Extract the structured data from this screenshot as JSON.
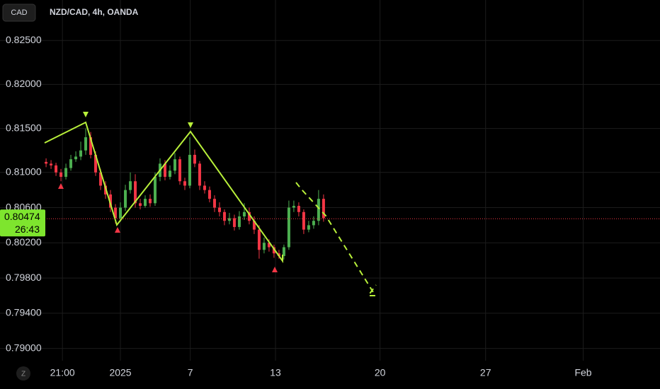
{
  "chart_data": {
    "type": "candlestick",
    "symbol_badge": "CAD",
    "title": "NZD/CAD, 4h, OANDA",
    "up_color": "#4caf50",
    "down_color": "#f23645",
    "opens": [
      0.8112,
      0.811,
      0.8108,
      0.81,
      0.8095,
      0.8105,
      0.8115,
      0.8118,
      0.8125,
      0.814,
      0.812,
      0.81,
      0.8085,
      0.8075,
      0.806,
      0.8048,
      0.806,
      0.808,
      0.809,
      0.8065,
      0.8062,
      0.807,
      0.8065,
      0.8095,
      0.811,
      0.8095,
      0.8102,
      0.8115,
      0.809,
      0.8085,
      0.812,
      0.811,
      0.8085,
      0.808,
      0.807,
      0.806,
      0.8055,
      0.8045,
      0.8048,
      0.8038,
      0.805,
      0.8055,
      0.8045,
      0.8035,
      0.8012,
      0.802,
      0.8015,
      0.8008,
      0.8005,
      0.8015,
      0.806,
      0.8062,
      0.8055,
      0.8035,
      0.804,
      0.8045,
      0.807
    ],
    "highs": [
      0.8116,
      0.8114,
      0.8111,
      0.8104,
      0.811,
      0.812,
      0.8124,
      0.8135,
      0.815,
      0.8146,
      0.8124,
      0.8104,
      0.809,
      0.808,
      0.8064,
      0.8066,
      0.8086,
      0.81,
      0.8098,
      0.807,
      0.8074,
      0.8075,
      0.81,
      0.8116,
      0.8114,
      0.8108,
      0.8122,
      0.8118,
      0.8094,
      0.814,
      0.8126,
      0.8113,
      0.809,
      0.8084,
      0.8074,
      0.8066,
      0.8058,
      0.8054,
      0.8052,
      0.8056,
      0.8065,
      0.806,
      0.805,
      0.804,
      0.8026,
      0.8024,
      0.8018,
      0.8012,
      0.8018,
      0.8068,
      0.8068,
      0.8066,
      0.8058,
      0.8045,
      0.805,
      0.808,
      0.8075
    ],
    "lows": [
      0.8106,
      0.8104,
      0.8096,
      0.809,
      0.8092,
      0.8102,
      0.8112,
      0.8114,
      0.812,
      0.8116,
      0.8096,
      0.808,
      0.807,
      0.8055,
      0.8042,
      0.8044,
      0.8056,
      0.8076,
      0.806,
      0.8058,
      0.806,
      0.8061,
      0.8062,
      0.809,
      0.8091,
      0.8092,
      0.8098,
      0.8086,
      0.808,
      0.8082,
      0.8106,
      0.808,
      0.8076,
      0.8066,
      0.8055,
      0.805,
      0.804,
      0.8041,
      0.8034,
      0.8035,
      0.8046,
      0.8041,
      0.803,
      0.8002,
      0.8008,
      0.801,
      0.8003,
      0.8002,
      0.8001,
      0.8012,
      0.8055,
      0.805,
      0.803,
      0.8032,
      0.8036,
      0.804,
      0.8044
    ],
    "closes": [
      0.811,
      0.8108,
      0.81,
      0.8095,
      0.8105,
      0.8115,
      0.8118,
      0.8125,
      0.814,
      0.812,
      0.81,
      0.8085,
      0.8075,
      0.806,
      0.8048,
      0.806,
      0.808,
      0.809,
      0.8065,
      0.8062,
      0.807,
      0.8065,
      0.8095,
      0.811,
      0.8095,
      0.8102,
      0.8115,
      0.809,
      0.8085,
      0.812,
      0.811,
      0.8085,
      0.808,
      0.807,
      0.806,
      0.8055,
      0.8045,
      0.8048,
      0.8038,
      0.805,
      0.8055,
      0.8045,
      0.8035,
      0.8012,
      0.802,
      0.8015,
      0.8008,
      0.8005,
      0.8015,
      0.806,
      0.8062,
      0.8055,
      0.8035,
      0.804,
      0.8045,
      0.807,
      0.8048
    ],
    "last_price": {
      "value": 0.80474,
      "label": "0.80474"
    },
    "countdown": "26:43",
    "ylim": [
      0.7886,
      0.8296
    ],
    "yticks": [
      {
        "value": 0.825,
        "label": "0.82500"
      },
      {
        "value": 0.82,
        "label": "0.82000"
      },
      {
        "value": 0.815,
        "label": "0.81500"
      },
      {
        "value": 0.81,
        "label": "0.81000"
      },
      {
        "value": 0.806,
        "label": "0.80600"
      },
      {
        "value": 0.802,
        "label": "0.80200"
      },
      {
        "value": 0.798,
        "label": "0.79800"
      },
      {
        "value": 0.794,
        "label": "0.79400"
      },
      {
        "value": 0.79,
        "label": "0.79000"
      }
    ],
    "xlim": [
      -9.3,
      123.9
    ],
    "xticks": [
      {
        "value": 3.3,
        "label": "21:00"
      },
      {
        "value": 15,
        "label": "2025"
      },
      {
        "value": 29.1,
        "label": "7"
      },
      {
        "value": 46.3,
        "label": "13"
      },
      {
        "value": 67.4,
        "label": "20"
      },
      {
        "value": 88.7,
        "label": "27"
      },
      {
        "value": 108.4,
        "label": "Feb"
      }
    ],
    "timezone_badge": "Z",
    "grid": true
  }
}
